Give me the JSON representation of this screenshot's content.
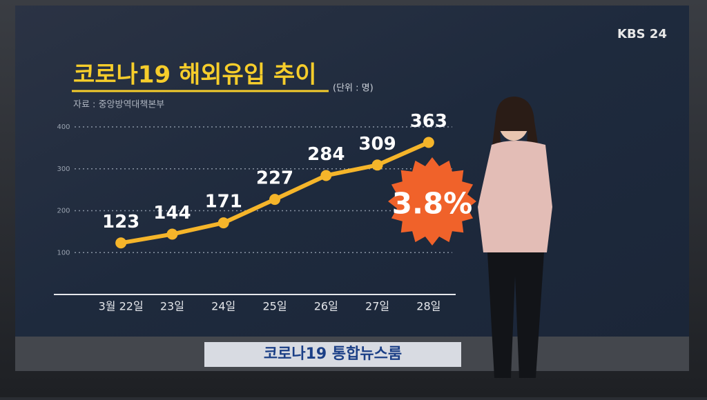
{
  "chart_data": {
    "type": "line",
    "title": "코로나19 해외유입 추이",
    "unit": "(단위 : 명)",
    "source": "자료 : 중앙방역대책본부",
    "categories": [
      "3월 22일",
      "23일",
      "24일",
      "25일",
      "26일",
      "27일",
      "28일"
    ],
    "values": [
      123,
      144,
      171,
      227,
      284,
      309,
      363
    ],
    "color": "#f5b52a",
    "ylim": [
      0,
      400
    ],
    "yticks": [
      100,
      200,
      300,
      400
    ],
    "grid": true,
    "annotation": "3.8%"
  },
  "logo": "KBS 24",
  "banner": "코로나19 통합뉴스룸"
}
